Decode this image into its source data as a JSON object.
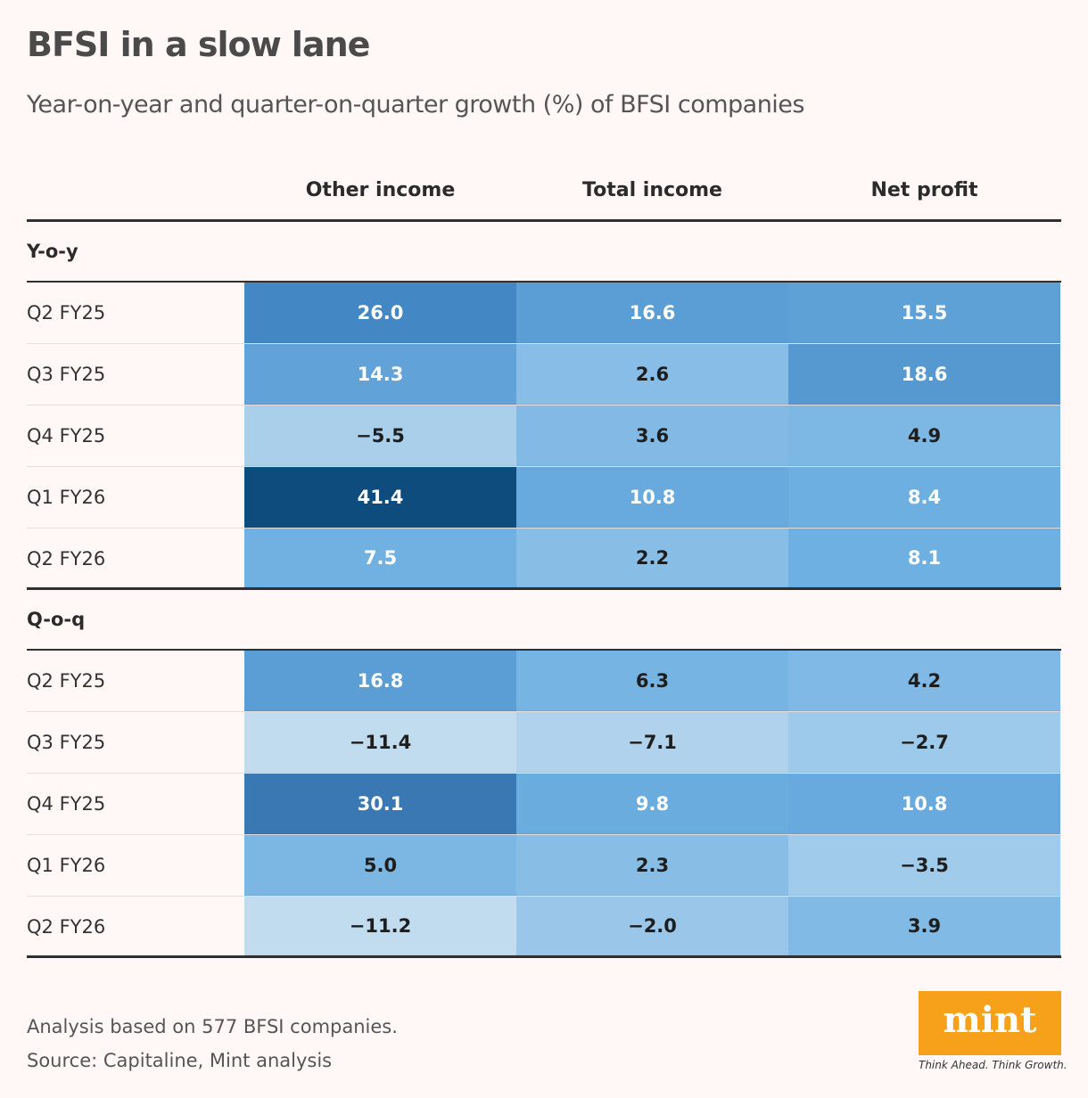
{
  "title": "BFSI in a slow lane",
  "subtitle": "Year-on-year and quarter-on-quarter growth (%) of BFSI companies",
  "chart_data": {
    "type": "heatmap",
    "columns": [
      "Other income",
      "Total income",
      "Net profit"
    ],
    "sections": [
      {
        "label": "Y-o-y",
        "rows": [
          {
            "label": "Q2 FY25",
            "values": [
              26.0,
              16.6,
              15.5
            ]
          },
          {
            "label": "Q3 FY25",
            "values": [
              14.3,
              2.6,
              18.6
            ]
          },
          {
            "label": "Q4 FY25",
            "values": [
              -5.5,
              3.6,
              4.9
            ]
          },
          {
            "label": "Q1 FY26",
            "values": [
              41.4,
              10.8,
              8.4
            ]
          },
          {
            "label": "Q2 FY26",
            "values": [
              7.5,
              2.2,
              8.1
            ]
          }
        ]
      },
      {
        "label": "Q-o-q",
        "rows": [
          {
            "label": "Q2 FY25",
            "values": [
              16.8,
              6.3,
              4.2
            ]
          },
          {
            "label": "Q3 FY25",
            "values": [
              -11.4,
              -7.1,
              -2.7
            ]
          },
          {
            "label": "Q4 FY25",
            "values": [
              30.1,
              9.8,
              10.8
            ]
          },
          {
            "label": "Q1 FY26",
            "values": [
              5.0,
              2.3,
              -3.5
            ]
          },
          {
            "label": "Q2 FY26",
            "values": [
              -11.2,
              -2.0,
              3.9
            ]
          }
        ]
      }
    ],
    "color_scale": [
      "#c4ddef",
      "#0b4a7a"
    ]
  },
  "notes": [
    "Analysis based on 577 BFSI companies.",
    "Source: Capitaline, Mint analysis"
  ],
  "logo": {
    "text": "mint",
    "tagline": "Think Ahead. Think Growth.",
    "color": "#f7a11a"
  }
}
